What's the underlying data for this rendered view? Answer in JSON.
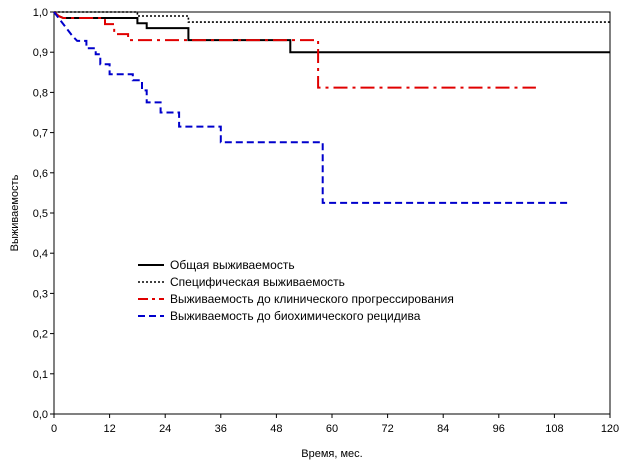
{
  "chart_data": {
    "type": "line",
    "title": "",
    "xlabel": "Время, мес.",
    "ylabel": "Выживаемость",
    "xlim": [
      0,
      120
    ],
    "ylim": [
      0,
      1.0
    ],
    "x_ticks": [
      0,
      12,
      24,
      36,
      48,
      60,
      72,
      84,
      96,
      108,
      120
    ],
    "y_ticks": [
      "0,0",
      "0,1",
      "0,2",
      "0,3",
      "0,4",
      "0,5",
      "0,6",
      "0,7",
      "0,8",
      "0,9",
      "1,0"
    ],
    "grid": false,
    "legend_position": "center-left",
    "series": [
      {
        "name": "Общая выживаемость",
        "color": "#000000",
        "line_style": "solid",
        "points": [
          [
            0,
            1.0
          ],
          [
            1,
            0.99
          ],
          [
            2,
            0.985
          ],
          [
            18,
            0.985
          ],
          [
            18,
            0.972
          ],
          [
            20,
            0.972
          ],
          [
            20,
            0.96
          ],
          [
            29,
            0.96
          ],
          [
            29,
            0.93
          ],
          [
            51,
            0.93
          ],
          [
            51,
            0.9
          ],
          [
            120,
            0.9
          ]
        ]
      },
      {
        "name": "Специфическая выживаемость",
        "color": "#000000",
        "line_style": "dotted",
        "points": [
          [
            0,
            1.0
          ],
          [
            18,
            1.0
          ],
          [
            18,
            0.99
          ],
          [
            29,
            0.99
          ],
          [
            29,
            0.975
          ],
          [
            120,
            0.975
          ]
        ]
      },
      {
        "name": "Выживаемость до клинического прогрессирования",
        "color": "#e00000",
        "line_style": "dash-dot",
        "points": [
          [
            0,
            1.0
          ],
          [
            1,
            0.99
          ],
          [
            2,
            0.985
          ],
          [
            11,
            0.985
          ],
          [
            11,
            0.97
          ],
          [
            13,
            0.97
          ],
          [
            13,
            0.945
          ],
          [
            16,
            0.945
          ],
          [
            16,
            0.93
          ],
          [
            57,
            0.93
          ],
          [
            57,
            0.812
          ],
          [
            104,
            0.812
          ]
        ]
      },
      {
        "name": "Выживаемость до биохимического рецидива",
        "color": "#0000cc",
        "line_style": "dashed",
        "points": [
          [
            0,
            1.0
          ],
          [
            1,
            0.985
          ],
          [
            2,
            0.97
          ],
          [
            3,
            0.955
          ],
          [
            4,
            0.94
          ],
          [
            5,
            0.928
          ],
          [
            7,
            0.928
          ],
          [
            7,
            0.91
          ],
          [
            9,
            0.91
          ],
          [
            9,
            0.895
          ],
          [
            10,
            0.895
          ],
          [
            10,
            0.87
          ],
          [
            12,
            0.87
          ],
          [
            12,
            0.845
          ],
          [
            17,
            0.845
          ],
          [
            17,
            0.83
          ],
          [
            19,
            0.83
          ],
          [
            19,
            0.805
          ],
          [
            20,
            0.805
          ],
          [
            20,
            0.775
          ],
          [
            23,
            0.775
          ],
          [
            23,
            0.75
          ],
          [
            27,
            0.75
          ],
          [
            27,
            0.715
          ],
          [
            36,
            0.715
          ],
          [
            36,
            0.676
          ],
          [
            58,
            0.676
          ],
          [
            58,
            0.525
          ],
          [
            111,
            0.525
          ]
        ]
      }
    ]
  }
}
